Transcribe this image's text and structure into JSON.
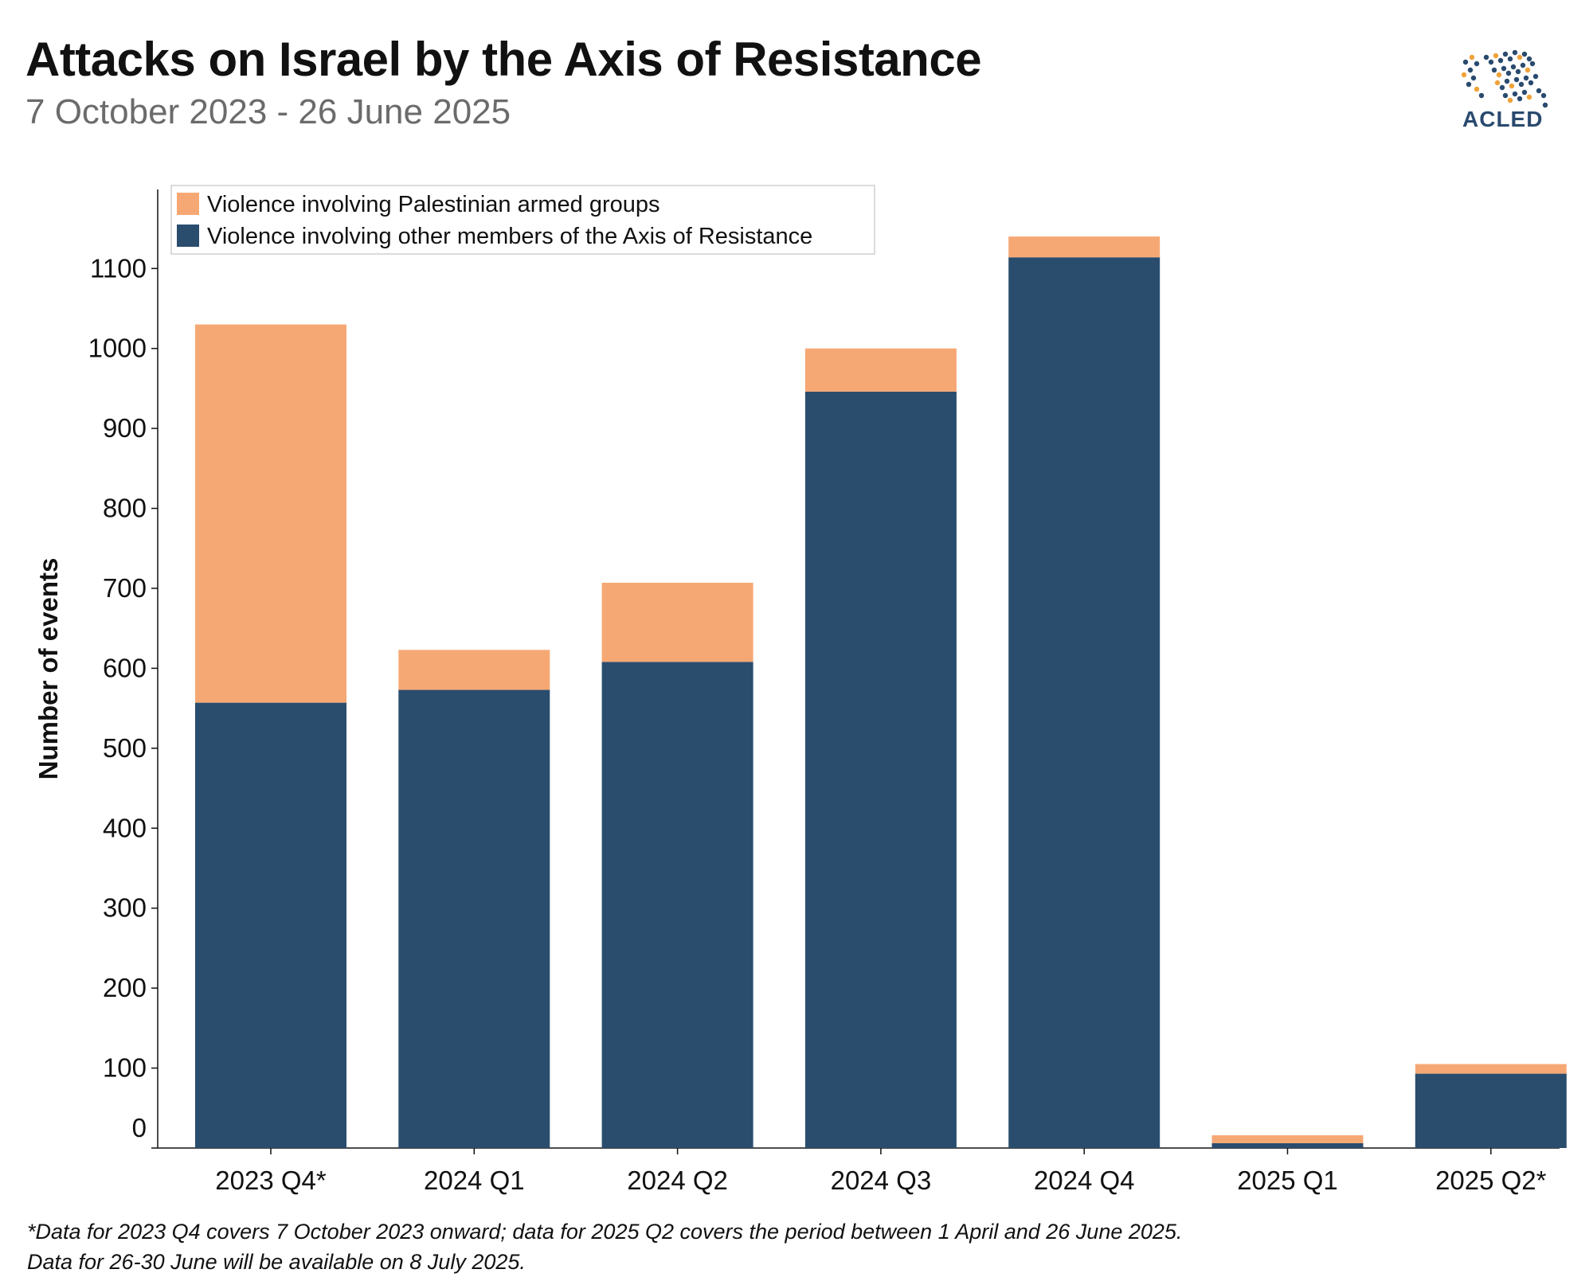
{
  "header": {
    "title": "Attacks on Israel by the Axis of Resistance",
    "subtitle": "7 October 2023 - 26 June 2025"
  },
  "logo": {
    "text": "ACLED",
    "icon": "world-map-dots-logo"
  },
  "footnote": {
    "line1": "*Data for 2023 Q4 covers 7 October 2023 onward; data for 2025 Q2 covers the period between 1 April and 26 June 2025.",
    "line2": "Data for 26-30 June will be available on 8 July 2025."
  },
  "colors": {
    "palestinian": "#f6a874",
    "axis_other": "#2a4d6e",
    "accent_logo_orange": "#f0a23a",
    "accent_logo_blue": "#2a4a6e"
  },
  "chart_data": {
    "type": "bar",
    "stacked": true,
    "categories": [
      "2023 Q4*",
      "2024 Q1",
      "2024 Q2",
      "2024 Q3",
      "2024 Q4",
      "2025 Q1",
      "2025 Q2*"
    ],
    "series": [
      {
        "name": "Violence involving other members of the Axis of Resistance",
        "values": [
          557,
          573,
          608,
          946,
          1114,
          6,
          93
        ]
      },
      {
        "name": "Violence involving Palestinian armed groups",
        "values": [
          473,
          50,
          99,
          54,
          26,
          10,
          12
        ]
      }
    ],
    "ylabel": "Number of events",
    "xlabel": "",
    "ylim": [
      0,
      1200
    ],
    "yticks": [
      0,
      100,
      200,
      300,
      400,
      500,
      600,
      700,
      800,
      900,
      1000,
      1100
    ],
    "legend_position": "top-left",
    "grid": false
  }
}
